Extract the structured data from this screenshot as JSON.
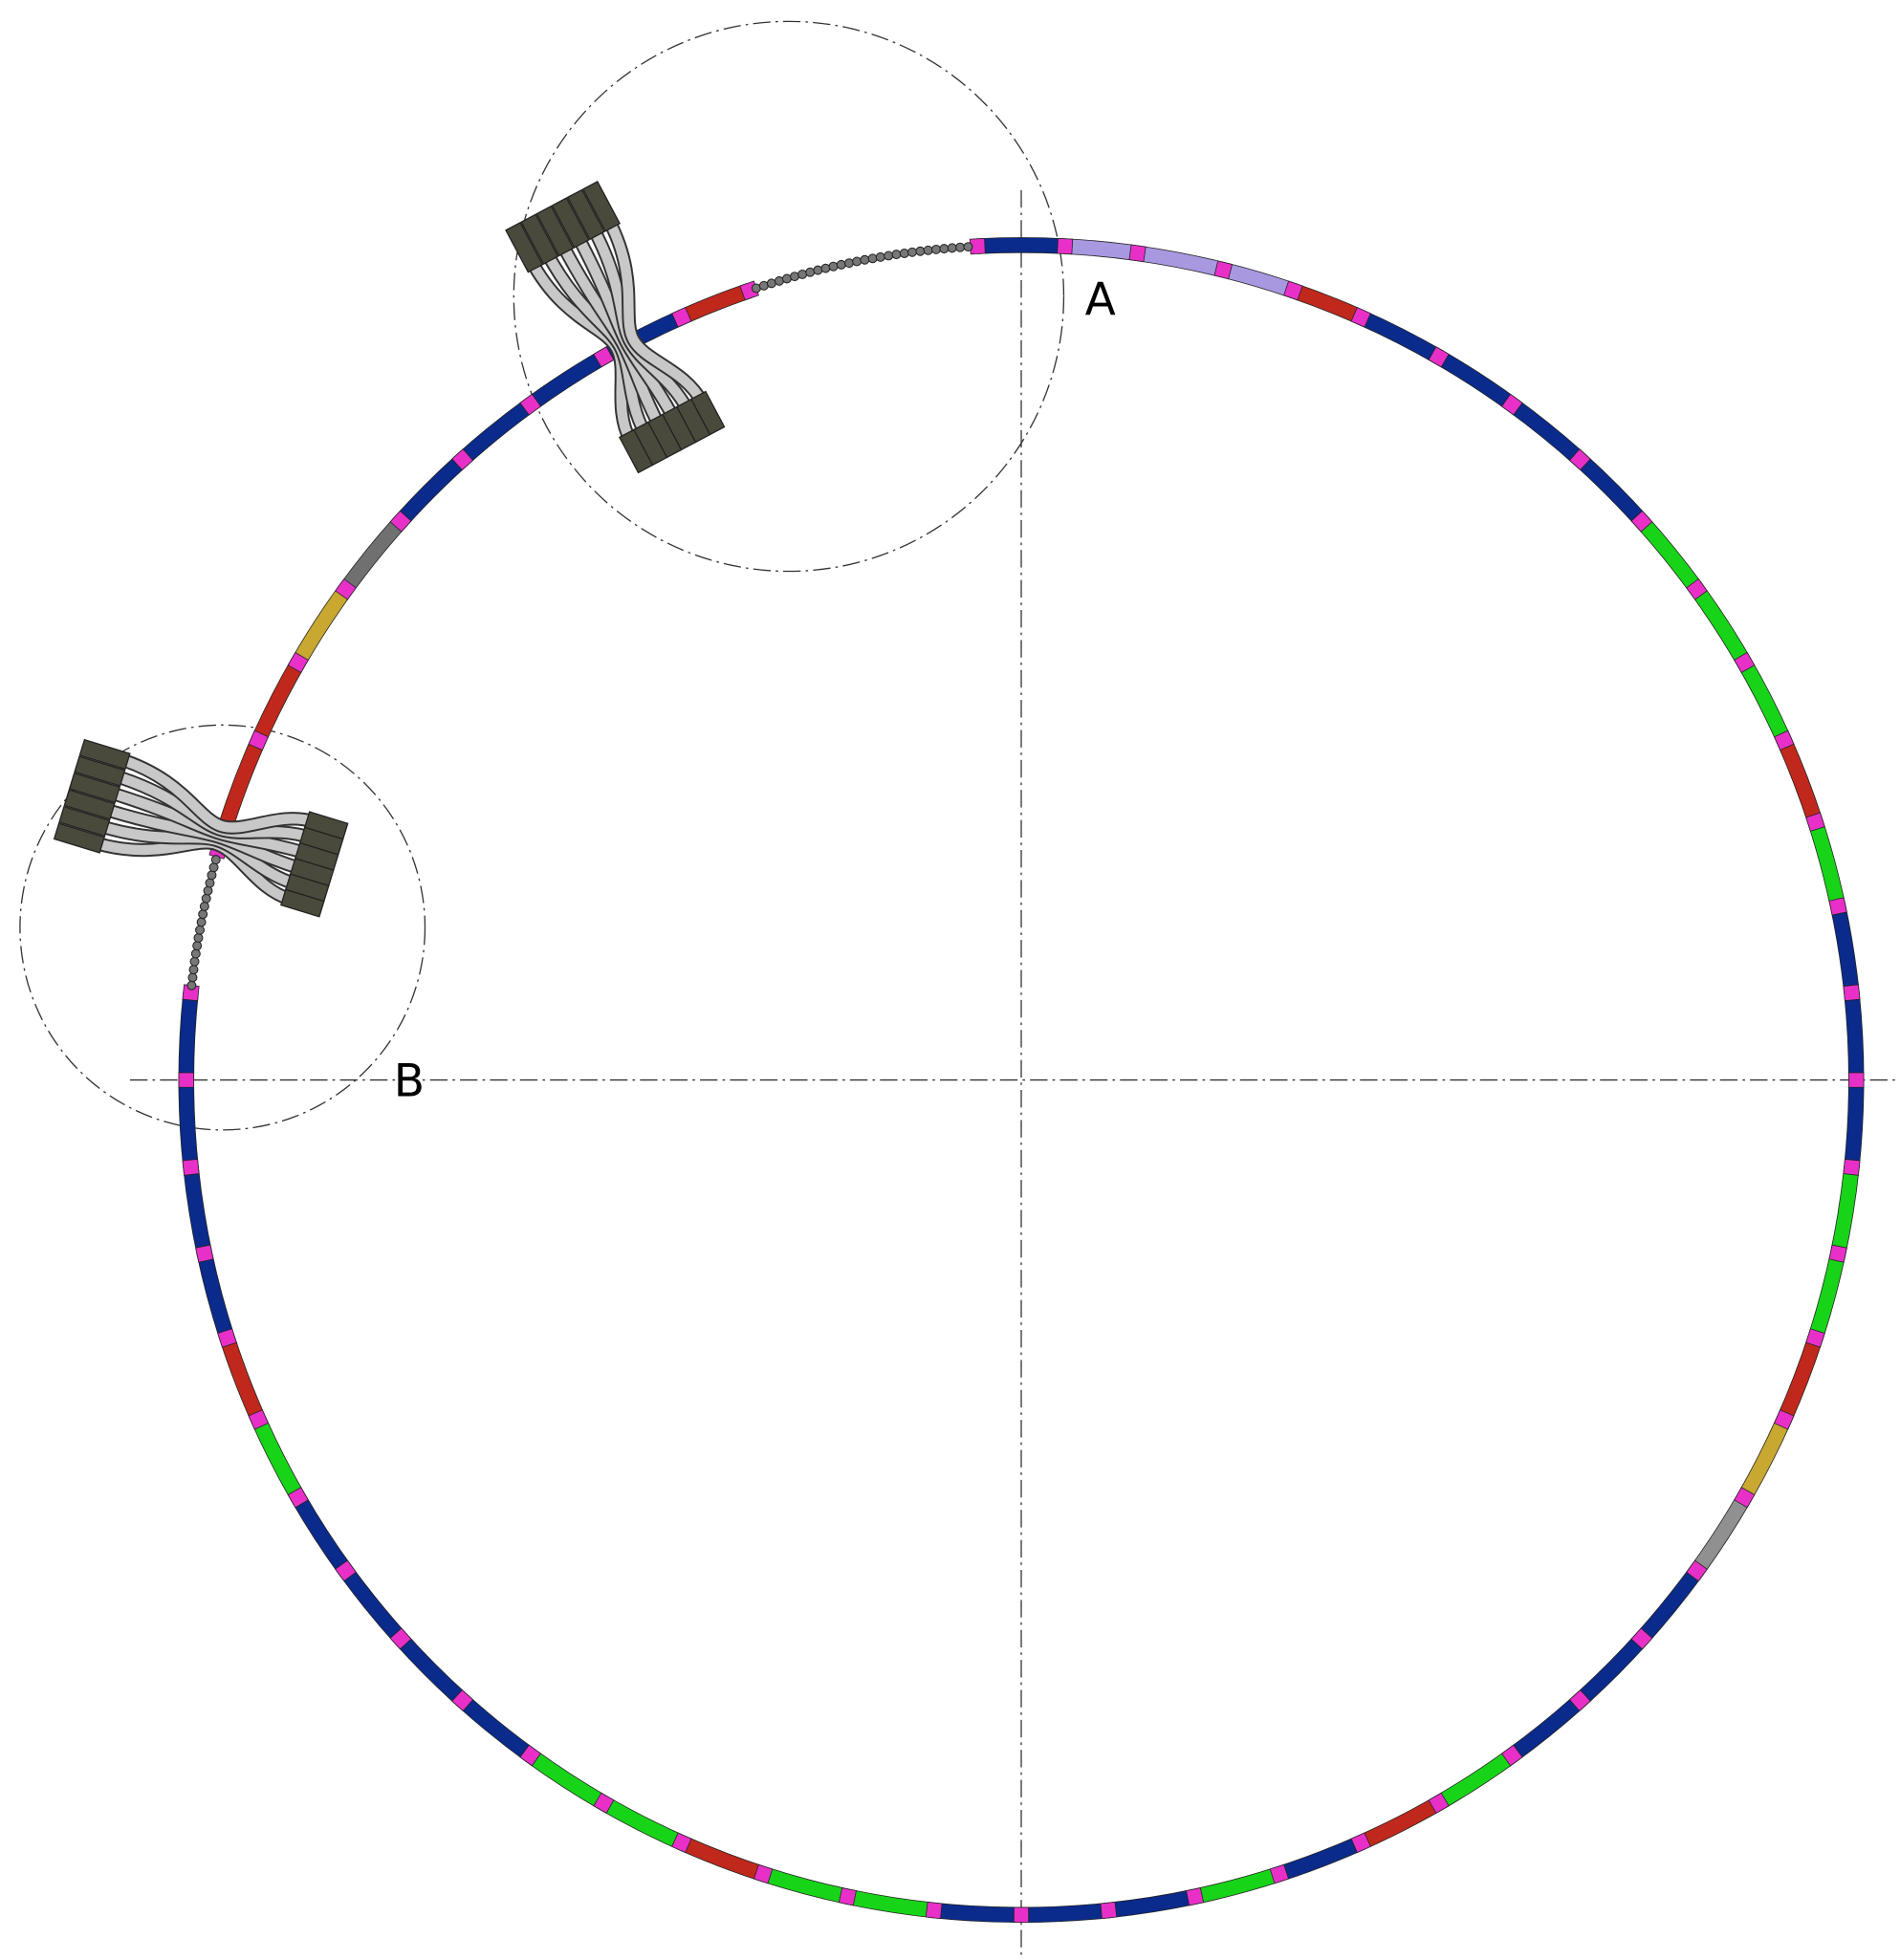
{
  "labels": {
    "a": "A",
    "b": "B"
  }
}
